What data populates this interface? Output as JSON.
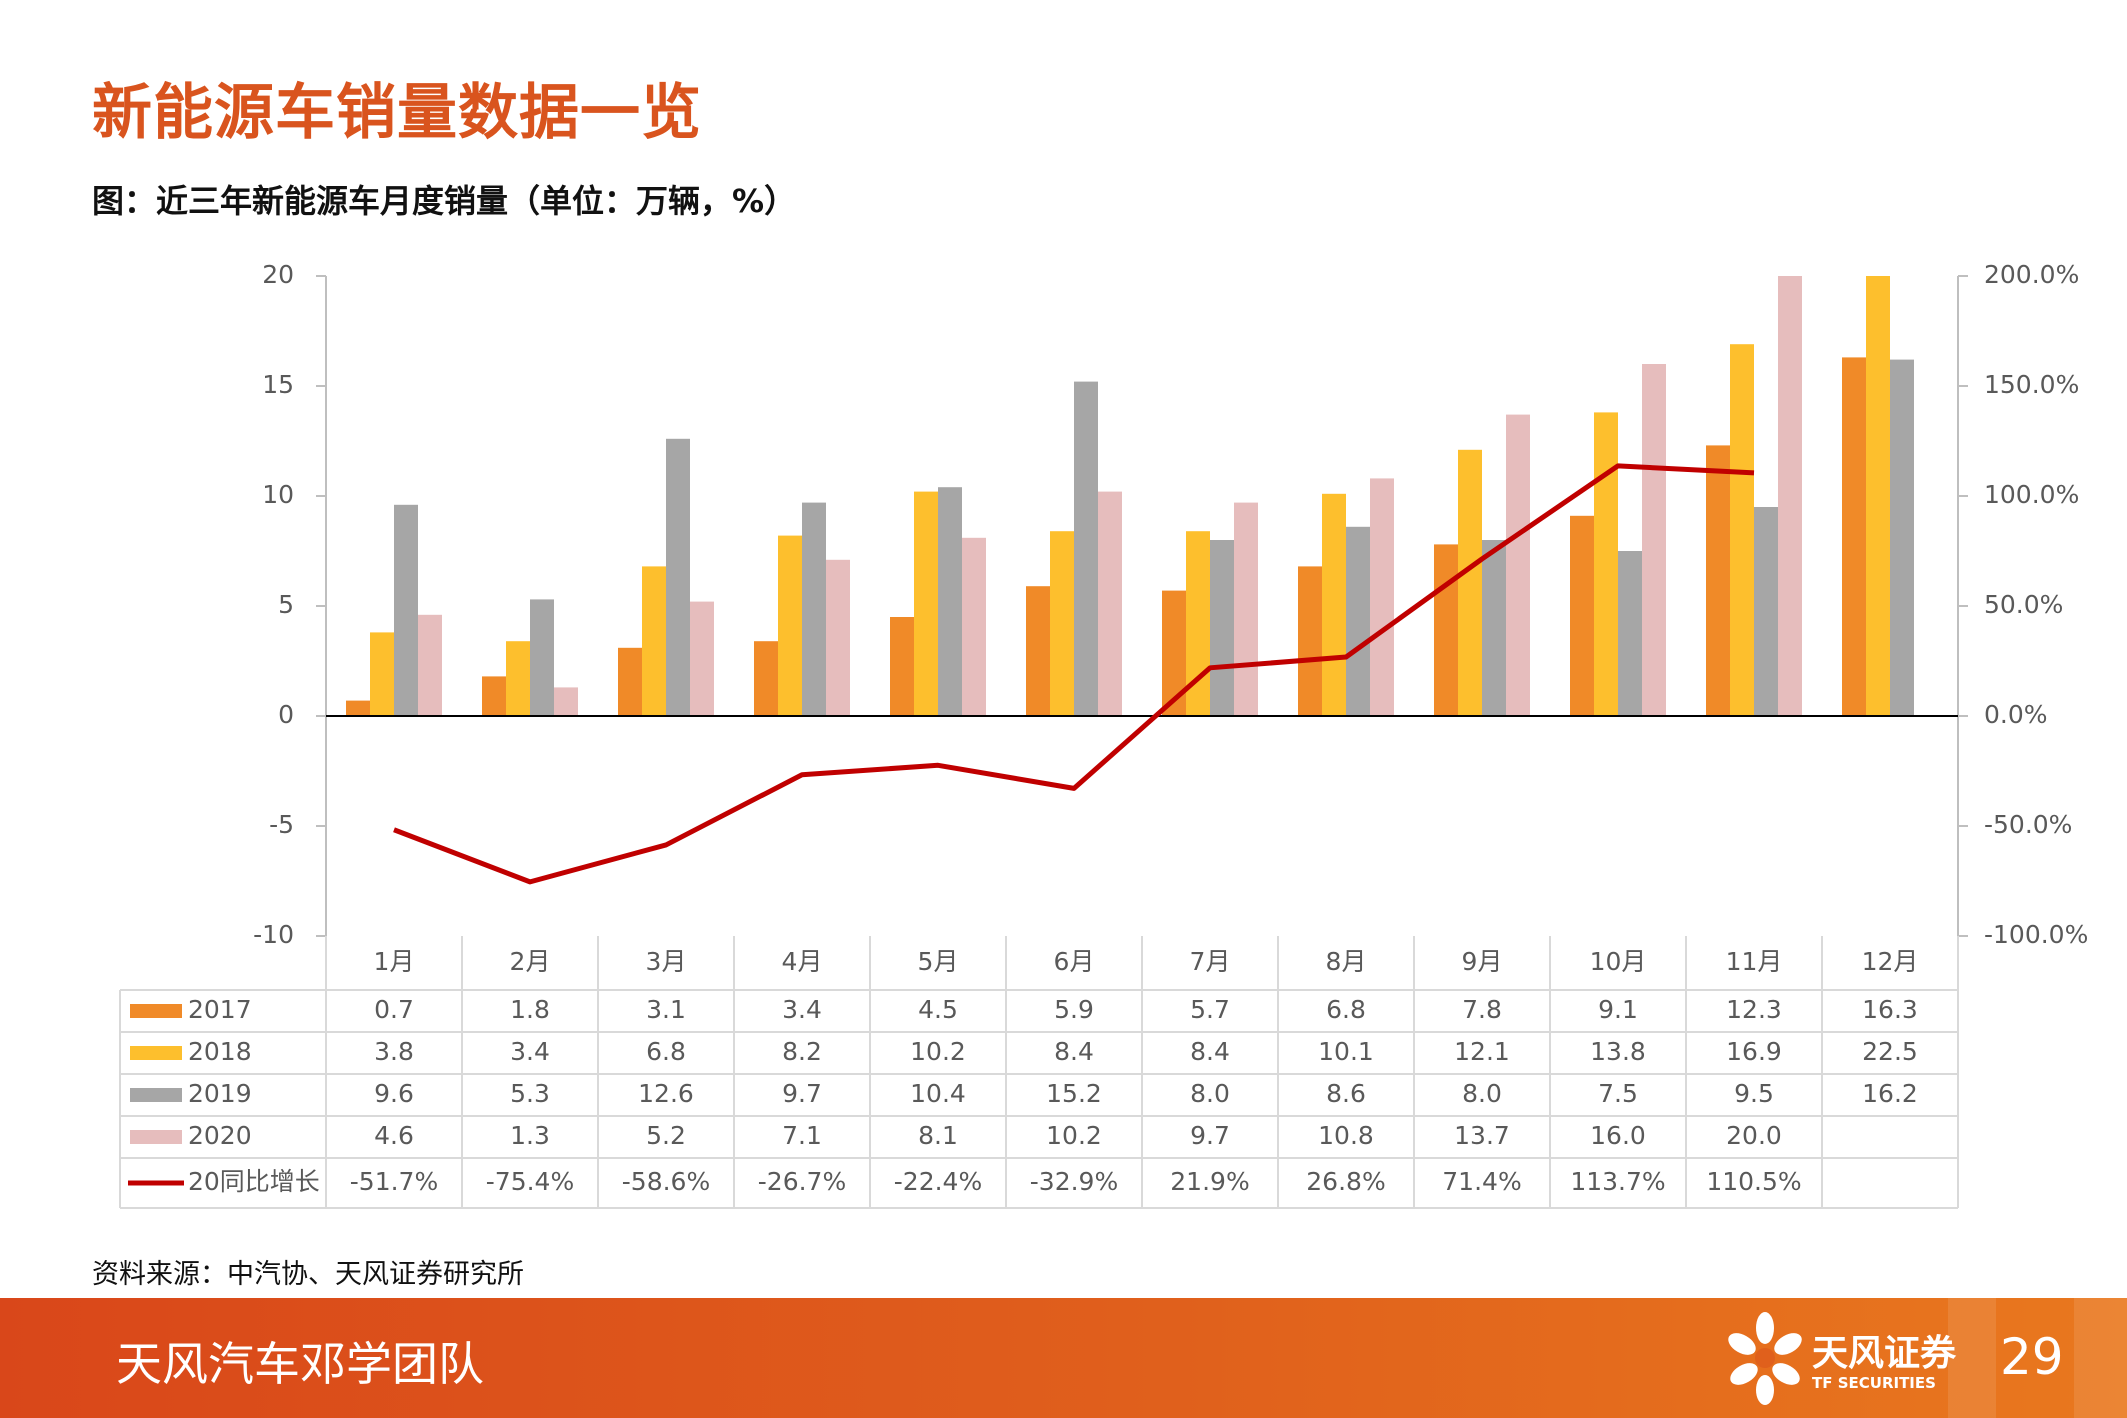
{
  "page": {
    "title": "新能源车销量数据一览",
    "subtitle": "图：近三年新能源车月度销量（单位：万辆，%）",
    "source": "资料来源：中汽协、天风证券研究所",
    "footer_team": "天风汽车邓学团队",
    "logo_cn": "天风证券",
    "logo_en": "TF SECURITIES",
    "page_number": "29"
  },
  "colors": {
    "accent": "#d9541e",
    "s2017": "#f08a28",
    "s2018": "#fdbf2d",
    "s2019": "#a6a6a6",
    "s2020": "#e6bdbd",
    "growth": "#c00000"
  },
  "chart_data": {
    "type": "bar+line",
    "categories": [
      "1月",
      "2月",
      "3月",
      "4月",
      "5月",
      "6月",
      "7月",
      "8月",
      "9月",
      "10月",
      "11月",
      "12月"
    ],
    "series": [
      {
        "name": "2017",
        "type": "bar",
        "color_key": "s2017",
        "values": [
          0.7,
          1.8,
          3.1,
          3.4,
          4.5,
          5.9,
          5.7,
          6.8,
          7.8,
          9.1,
          12.3,
          16.3
        ],
        "labels": [
          "0.7",
          "1.8",
          "3.1",
          "3.4",
          "4.5",
          "5.9",
          "5.7",
          "6.8",
          "7.8",
          "9.1",
          "12.3",
          "16.3"
        ]
      },
      {
        "name": "2018",
        "type": "bar",
        "color_key": "s2018",
        "values": [
          3.8,
          3.4,
          6.8,
          8.2,
          10.2,
          8.4,
          8.4,
          10.1,
          12.1,
          13.8,
          16.9,
          22.5
        ],
        "labels": [
          "3.8",
          "3.4",
          "6.8",
          "8.2",
          "10.2",
          "8.4",
          "8.4",
          "10.1",
          "12.1",
          "13.8",
          "16.9",
          "22.5"
        ]
      },
      {
        "name": "2019",
        "type": "bar",
        "color_key": "s2019",
        "values": [
          9.6,
          5.3,
          12.6,
          9.7,
          10.4,
          15.2,
          8.0,
          8.6,
          8.0,
          7.5,
          9.5,
          16.2
        ],
        "labels": [
          "9.6",
          "5.3",
          "12.6",
          "9.7",
          "10.4",
          "15.2",
          "8.0",
          "8.6",
          "8.0",
          "7.5",
          "9.5",
          "16.2"
        ]
      },
      {
        "name": "2020",
        "type": "bar",
        "color_key": "s2020",
        "values": [
          4.6,
          1.3,
          5.2,
          7.1,
          8.1,
          10.2,
          9.7,
          10.8,
          13.7,
          16.0,
          20.0,
          null
        ],
        "labels": [
          "4.6",
          "1.3",
          "5.2",
          "7.1",
          "8.1",
          "10.2",
          "9.7",
          "10.8",
          "13.7",
          "16.0",
          "20.0",
          ""
        ]
      },
      {
        "name": "20同比增长",
        "type": "line",
        "axis": "right",
        "color_key": "growth",
        "values": [
          -51.7,
          -75.4,
          -58.6,
          -26.7,
          -22.4,
          -32.9,
          21.9,
          26.8,
          71.4,
          113.7,
          110.5,
          null
        ],
        "labels": [
          "-51.7%",
          "-75.4%",
          "-58.6%",
          "-26.7%",
          "-22.4%",
          "-32.9%",
          "21.9%",
          "26.8%",
          "71.4%",
          "113.7%",
          "110.5%",
          ""
        ]
      }
    ],
    "y_left": {
      "min": -10,
      "max": 20,
      "ticks": [
        "20",
        "15",
        "10",
        "5",
        "0",
        "-5",
        "-10"
      ],
      "tick_values": [
        20,
        15,
        10,
        5,
        0,
        -5,
        -10
      ]
    },
    "y_right": {
      "min": -100,
      "max": 200,
      "ticks": [
        "200.0%",
        "150.0%",
        "100.0%",
        "50.0%",
        "0.0%",
        "-50.0%",
        "-100.0%"
      ],
      "tick_values": [
        200,
        150,
        100,
        50,
        0,
        -50,
        -100
      ]
    },
    "data_table": true
  }
}
